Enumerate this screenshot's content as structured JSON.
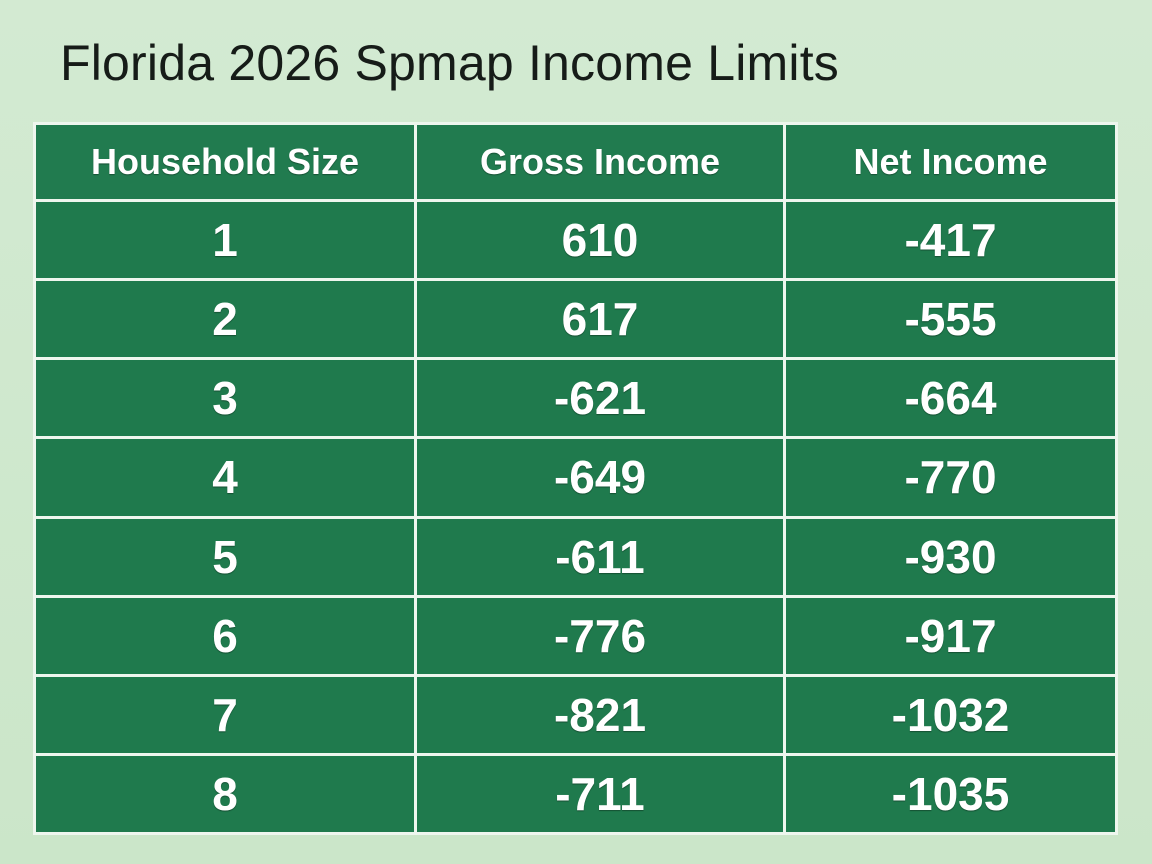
{
  "title": "Florida 2026 Spmap Income Limits",
  "table": {
    "headers": [
      "Household Size",
      "Gross Income",
      "Net Income"
    ],
    "rows": [
      [
        "1",
        "610",
        "-417"
      ],
      [
        "2",
        "617",
        "-555"
      ],
      [
        "3",
        "-621",
        "-664"
      ],
      [
        "4",
        "-649",
        "-770"
      ],
      [
        "5",
        "-611",
        "-930"
      ],
      [
        "6",
        "-776",
        "-917"
      ],
      [
        "7",
        "-821",
        "-1032"
      ],
      [
        "8",
        "-711",
        "-1035"
      ]
    ]
  },
  "colors": {
    "background": "#cfe8cf",
    "cell": "#1f7a4d",
    "grid_lines": "#eef6ee",
    "text_on_cell": "#ffffff",
    "title_text": "#161c18"
  }
}
